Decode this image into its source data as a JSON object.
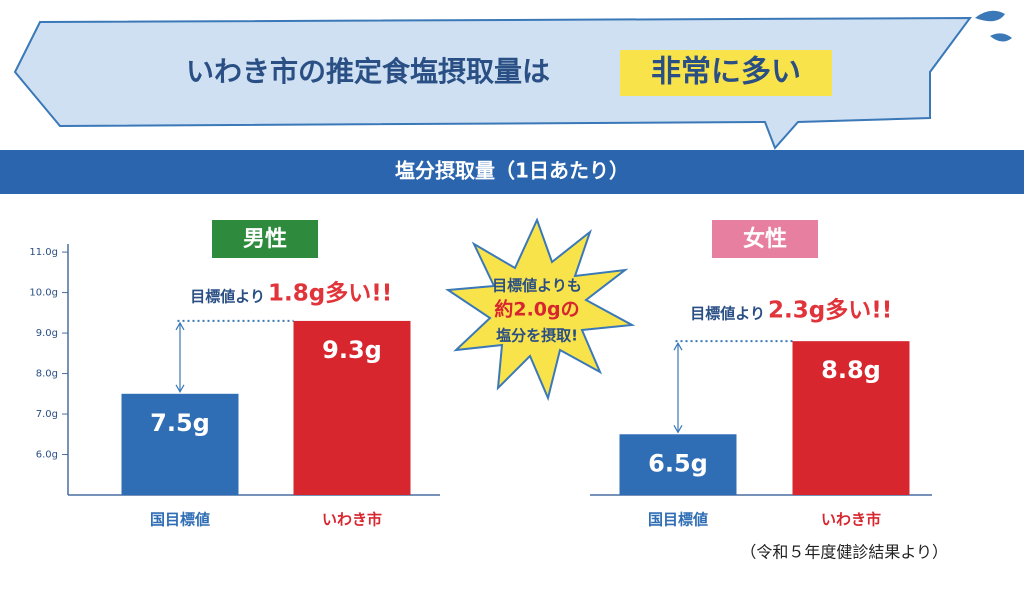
{
  "banner": {
    "title": "いわき市の推定食塩摂取量は",
    "highlight": "非常に多い"
  },
  "header_bar": "塩分摂取量（1日あたり）",
  "burst": [
    "目標値よりも",
    "約2.0gの",
    "塩分を摂取!"
  ],
  "source": "（令和５年度健診結果より）",
  "chart_data": [
    {
      "type": "bar",
      "title": "男性",
      "title_color": "#2e8b3e",
      "categories": [
        "国目標値",
        "いわき市"
      ],
      "values": [
        7.5,
        9.3
      ],
      "value_labels": [
        "7.5g",
        "9.3g"
      ],
      "colors": [
        "#2f6db5",
        "#d8262f"
      ],
      "annotation_prefix": "目標値より",
      "annotation": "1.8g多い!!",
      "ylim": [
        5,
        11.2
      ],
      "yticks": [
        {
          "value": 6,
          "label": "6.0g"
        },
        {
          "value": 7,
          "label": "7.0g"
        },
        {
          "value": 8,
          "label": "8.0g"
        },
        {
          "value": 9,
          "label": "9.0g"
        },
        {
          "value": 10,
          "label": "10.0g"
        },
        {
          "value": 11,
          "label": "11.0g"
        }
      ]
    },
    {
      "type": "bar",
      "title": "女性",
      "title_color": "#e77fa0",
      "categories": [
        "国目標値",
        "いわき市"
      ],
      "values": [
        6.5,
        8.8
      ],
      "value_labels": [
        "6.5g",
        "8.8g"
      ],
      "colors": [
        "#2f6db5",
        "#d8262f"
      ],
      "annotation_prefix": "目標値より",
      "annotation": "2.3g多い!!",
      "ylim": [
        5,
        11.2
      ]
    }
  ]
}
